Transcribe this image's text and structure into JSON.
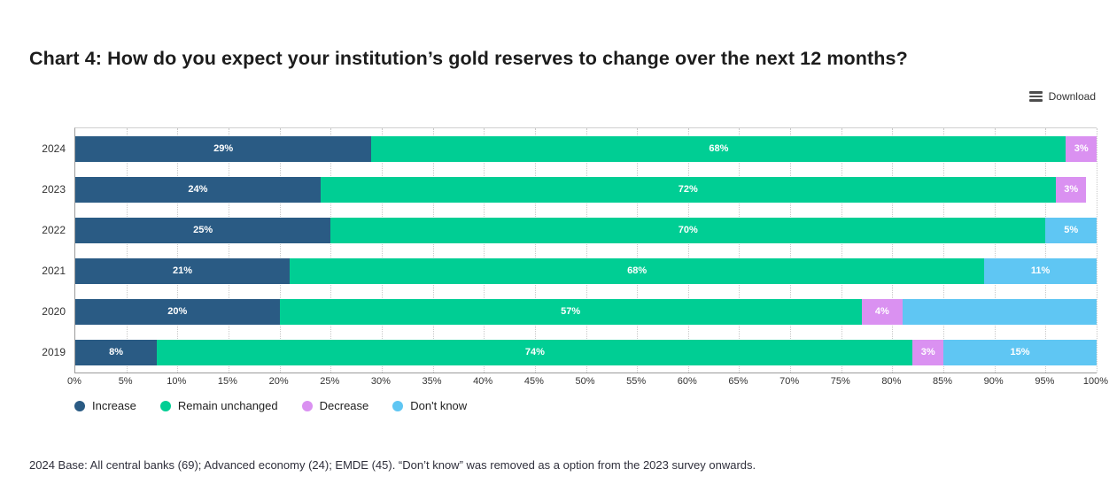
{
  "page": {
    "download_label": "Download",
    "footnote": "2024 Base: All central banks (69); Advanced economy (24); EMDE (45). “Don’t know” was removed as a option from the 2023 survey onwards."
  },
  "chart_data": {
    "type": "bar",
    "orientation": "horizontal",
    "stacked": true,
    "title": "Chart 4: How do you expect your institution’s gold reserves to change over the next 12 months?",
    "xlabel": "",
    "ylabel": "",
    "xlim": [
      0,
      100
    ],
    "grid": "vertical dotted every 5%",
    "legend_position": "bottom-left",
    "categories": [
      "2024",
      "2023",
      "2022",
      "2021",
      "2020",
      "2019"
    ],
    "series_colors": {
      "Increase": "#2a5b84",
      "Remain unchanged": "#00ce94",
      "Decrease": "#da91f1",
      "Don't know": "#5fc6f3"
    },
    "series": [
      {
        "name": "Increase",
        "values": [
          29,
          24,
          25,
          21,
          20,
          8
        ]
      },
      {
        "name": "Remain unchanged",
        "values": [
          68,
          72,
          70,
          68,
          57,
          74
        ]
      },
      {
        "name": "Decrease",
        "values": [
          3,
          3,
          0,
          0,
          4,
          3
        ]
      },
      {
        "name": "Don't know",
        "values": [
          0,
          0,
          5,
          11,
          19,
          15
        ]
      }
    ],
    "rows": [
      {
        "year": "2024",
        "segments": [
          {
            "series": "Increase",
            "value": 29,
            "label": "29%"
          },
          {
            "series": "Remain unchanged",
            "value": 68,
            "label": "68%"
          },
          {
            "series": "Decrease",
            "value": 3,
            "label": "3%"
          }
        ]
      },
      {
        "year": "2023",
        "segments": [
          {
            "series": "Increase",
            "value": 24,
            "label": "24%"
          },
          {
            "series": "Remain unchanged",
            "value": 72,
            "label": "72%"
          },
          {
            "series": "Decrease",
            "value": 3,
            "label": "3%"
          }
        ]
      },
      {
        "year": "2022",
        "segments": [
          {
            "series": "Increase",
            "value": 25,
            "label": "25%"
          },
          {
            "series": "Remain unchanged",
            "value": 70,
            "label": "70%"
          },
          {
            "series": "Don't know",
            "value": 5,
            "label": "5%"
          }
        ]
      },
      {
        "year": "2021",
        "segments": [
          {
            "series": "Increase",
            "value": 21,
            "label": "21%"
          },
          {
            "series": "Remain unchanged",
            "value": 68,
            "label": "68%"
          },
          {
            "series": "Don't know",
            "value": 11,
            "label": "11%"
          }
        ]
      },
      {
        "year": "2020",
        "segments": [
          {
            "series": "Increase",
            "value": 20,
            "label": "20%"
          },
          {
            "series": "Remain unchanged",
            "value": 57,
            "label": "57%"
          },
          {
            "series": "Decrease",
            "value": 4,
            "label": "4%"
          },
          {
            "series": "Don't know",
            "value": 19,
            "label": ""
          }
        ]
      },
      {
        "year": "2019",
        "segments": [
          {
            "series": "Increase",
            "value": 8,
            "label": "8%"
          },
          {
            "series": "Remain unchanged",
            "value": 74,
            "label": "74%"
          },
          {
            "series": "Decrease",
            "value": 3,
            "label": "3%"
          },
          {
            "series": "Don't know",
            "value": 15,
            "label": "15%"
          }
        ]
      }
    ],
    "xticks": [
      "0%",
      "5%",
      "10%",
      "15%",
      "20%",
      "25%",
      "30%",
      "35%",
      "40%",
      "45%",
      "50%",
      "55%",
      "60%",
      "65%",
      "70%",
      "75%",
      "80%",
      "85%",
      "90%",
      "95%",
      "100%"
    ],
    "legend": [
      {
        "label": "Increase"
      },
      {
        "label": "Remain unchanged"
      },
      {
        "label": "Decrease"
      },
      {
        "label": "Don't know"
      }
    ]
  }
}
